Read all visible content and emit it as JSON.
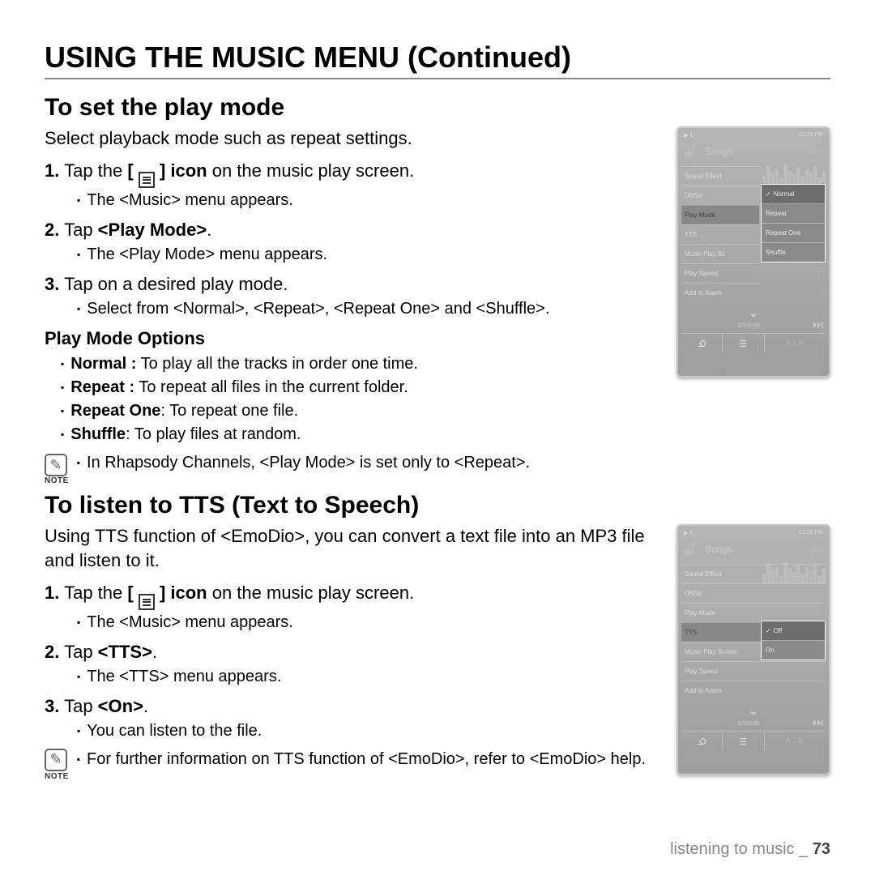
{
  "page_title": "USING THE MUSIC MENU (Continued)",
  "section1": {
    "title": "To set the play mode",
    "intro": "Select playback mode such as repeat settings.",
    "step1_pre": "Tap the ",
    "step1_bold": "[",
    "step1_post": "] icon",
    "step1_tail": " on the music play screen.",
    "step1_sub": "The <Music> menu appears.",
    "step2_pre": "Tap ",
    "step2_bold": "<Play Mode>",
    "step2_post": ".",
    "step2_sub": "The <Play Mode> menu appears.",
    "step3": "Tap on a desired play mode.",
    "step3_sub": "Select from <Normal>, <Repeat>, <Repeat One> and <Shuffle>.",
    "opts_title": "Play Mode Options",
    "opt1_b": "Normal :",
    "opt1_t": " To play all the tracks in order one time.",
    "opt2_b": "Repeat :",
    "opt2_t": " To repeat all files in the current folder.",
    "opt3_b": "Repeat One",
    "opt3_t": ": To repeat one file.",
    "opt4_b": "Shuffle",
    "opt4_t": ": To play files at random.",
    "note": "In Rhapsody Channels, <Play Mode> is set only to <Repeat>.",
    "note_label": "NOTE"
  },
  "section2": {
    "title": "To listen to TTS (Text to Speech)",
    "intro": "Using TTS function of <EmoDio>, you can convert a text file into an MP3 file and listen to it.",
    "step1_pre": "Tap the ",
    "step1_bold": "[",
    "step1_post": "] icon",
    "step1_tail": " on the music play screen.",
    "step1_sub": "The <Music> menu appears.",
    "step2_pre": "Tap ",
    "step2_bold": "<TTS>",
    "step2_post": ".",
    "step2_sub": "The <TTS> menu appears.",
    "step3_pre": "Tap ",
    "step3_bold": "<On>",
    "step3_post": ".",
    "step3_sub": "You can listen to the file.",
    "note": "For further information on TTS function of <EmoDio>, refer to <EmoDio> help.",
    "note_label": "NOTE"
  },
  "footer": {
    "text": "listening to music _ ",
    "page": "73"
  },
  "device": {
    "time": "01:25 PM",
    "header": "Songs",
    "count": "1/52",
    "menu_items": [
      "Sound Effect",
      "DNSe",
      "Play Mode",
      "TTS",
      "Music Play Screen",
      "Play Speed",
      "Add to Alarm"
    ],
    "play_modes": [
      "Normal",
      "Repeat",
      "Repeat One",
      "Shuffle"
    ],
    "tts_options": [
      "Off",
      "On"
    ],
    "track_time": "37/05:09",
    "ab_label": "A↔B",
    "highlight1_index": 2,
    "highlight2_index": 3,
    "eq_heights": [
      12,
      24,
      16,
      20,
      10,
      26,
      18,
      14,
      22,
      12,
      20,
      16,
      24,
      10,
      18
    ]
  },
  "colors": {
    "device_bg_top": "#b5b5b5",
    "device_bg_bot": "#9e9e9e",
    "popup_bg": "#8a8a8a",
    "text_light": "#e8e8e8"
  }
}
